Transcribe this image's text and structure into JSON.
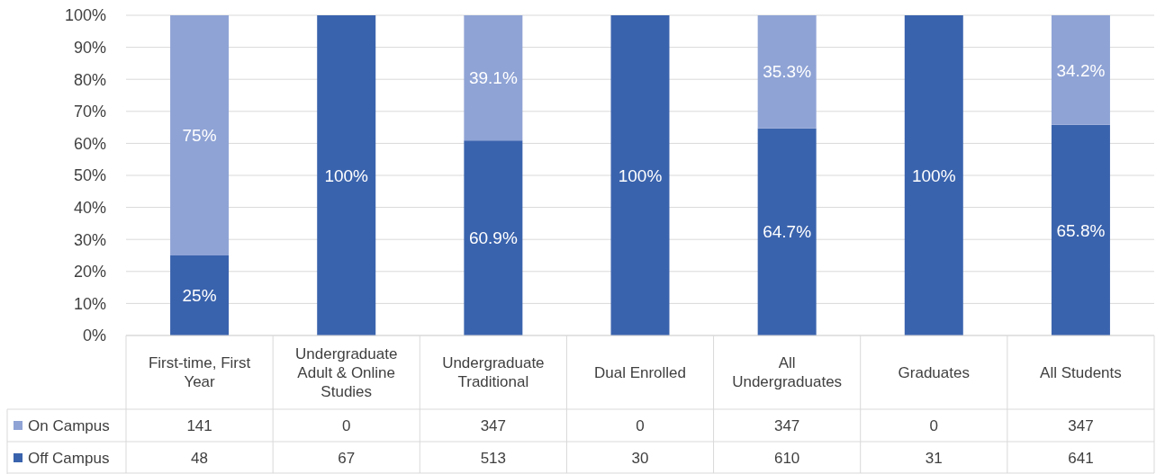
{
  "chart_data": {
    "type": "bar",
    "stacked": true,
    "grid": "y",
    "legend": "bottom",
    "categories": [
      "First-time, First Year",
      "Undergraduate Adult & Online Studies",
      "Undergraduate Traditional",
      "Dual Enrolled",
      "All Undergraduates",
      "Graduates",
      "All Students"
    ],
    "series": [
      {
        "name": "Off Campus",
        "color": "#3a63ad",
        "values": [
          25,
          100,
          60.9,
          100,
          64.7,
          100,
          65.8
        ],
        "value_labels": [
          "25%",
          "100%",
          "60.9%",
          "100%",
          "64.7%",
          "100%",
          "65.8%"
        ]
      },
      {
        "name": "On Campus",
        "color": "#8fa3d5",
        "values": [
          75,
          0,
          39.1,
          0,
          35.3,
          0,
          34.2
        ],
        "value_labels": [
          "75%",
          null,
          "39.1%",
          null,
          "35.3%",
          null,
          "34.2%"
        ]
      }
    ],
    "ylim": [
      0,
      100
    ],
    "yticks": [
      {
        "value": 0,
        "label": "0%"
      },
      {
        "value": 10,
        "label": "10%"
      },
      {
        "value": 20,
        "label": "20%"
      },
      {
        "value": 30,
        "label": "30%"
      },
      {
        "value": 40,
        "label": "40%"
      },
      {
        "value": 50,
        "label": "50%"
      },
      {
        "value": 60,
        "label": "60%"
      },
      {
        "value": 70,
        "label": "70%"
      },
      {
        "value": 80,
        "label": "80%"
      },
      {
        "value": 90,
        "label": "90%"
      },
      {
        "value": 100,
        "label": "100%"
      }
    ],
    "annotations": [
      "141",
      "0",
      "347",
      "0",
      "347",
      "0",
      "347",
      "48",
      "67",
      "513",
      "30",
      "610",
      "31",
      "641"
    ]
  }
}
